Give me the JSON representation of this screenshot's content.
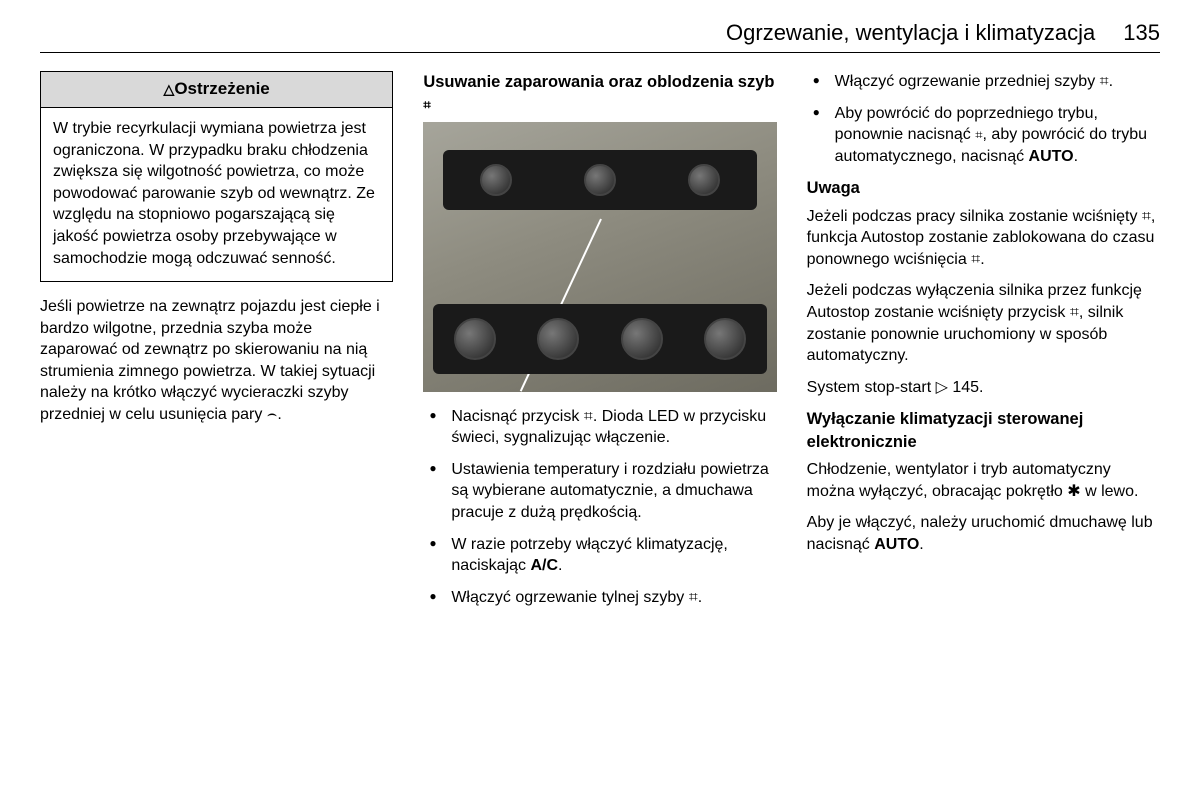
{
  "header": {
    "title": "Ogrzewanie, wentylacja i klimatyzacja",
    "page": "135"
  },
  "col1": {
    "warning_title": "Ostrzeżenie",
    "warning_body": "W trybie recyrkulacji wymiana powietrza jest ograniczona. W przypadku braku chłodzenia zwiększa się wilgotność powietrza, co może powodować parowanie szyb od wewnątrz. Ze względu na stopniowo pogarszającą się jakość powietrza osoby przebywające w samochodzie mogą odczuwać senność.",
    "para1": "Jeśli powietrze na zewnątrz pojazdu jest ciepłe i bardzo wilgotne, przednia szyba może zaparować od zewnątrz po skierowaniu na nią strumienia zimnego powietrza. W takiej sytuacji należy na krótko włączyć wycieraczki szyby przedniej w celu usunięcia pary ⌢."
  },
  "col2": {
    "heading": "Usuwanie zaparowania oraz oblodzenia szyb ",
    "heading_icon": "⌗",
    "bullets": [
      "Nacisnąć przycisk ⌗. Dioda LED w przycisku świeci, sygnalizując włączenie.",
      "Ustawienia temperatury i rozdziału powietrza są wybierane automatycznie, a dmuchawa pracuje z dużą prędkością.",
      "W razie potrzeby włączyć klimatyzację, naciskając A/C.",
      "Włączyć ogrzewanie tylnej szyby ⌗."
    ]
  },
  "col3": {
    "bullets": [
      "Włączyć ogrzewanie przedniej szyby ⌗.",
      "Aby powrócić do poprzedniego trybu, ponownie nacisnąć ⌗, aby powrócić do trybu automatycznego, nacisnąć AUTO."
    ],
    "note_head": "Uwaga",
    "note_p1": "Jeżeli podczas pracy silnika zostanie wciśnięty ⌗, funkcja Autostop zostanie zablokowana do czasu ponownego wciśnięcia ⌗.",
    "note_p2": "Jeżeli podczas wyłączenia silnika przez funkcję Autostop zostanie wciśnięty przycisk ⌗, silnik zostanie ponownie uruchomiony w sposób automatyczny.",
    "stopstart": "System stop-start ▷ 145.",
    "sub2": "Wyłączanie klimatyzacji sterowanej elektronicznie",
    "p3": "Chłodzenie, wentylator i tryb automatyczny można wyłączyć, obracając pokrętło ✱ w lewo.",
    "p4": "Aby je włączyć, należy uruchomić dmuchawę lub nacisnąć AUTO."
  }
}
